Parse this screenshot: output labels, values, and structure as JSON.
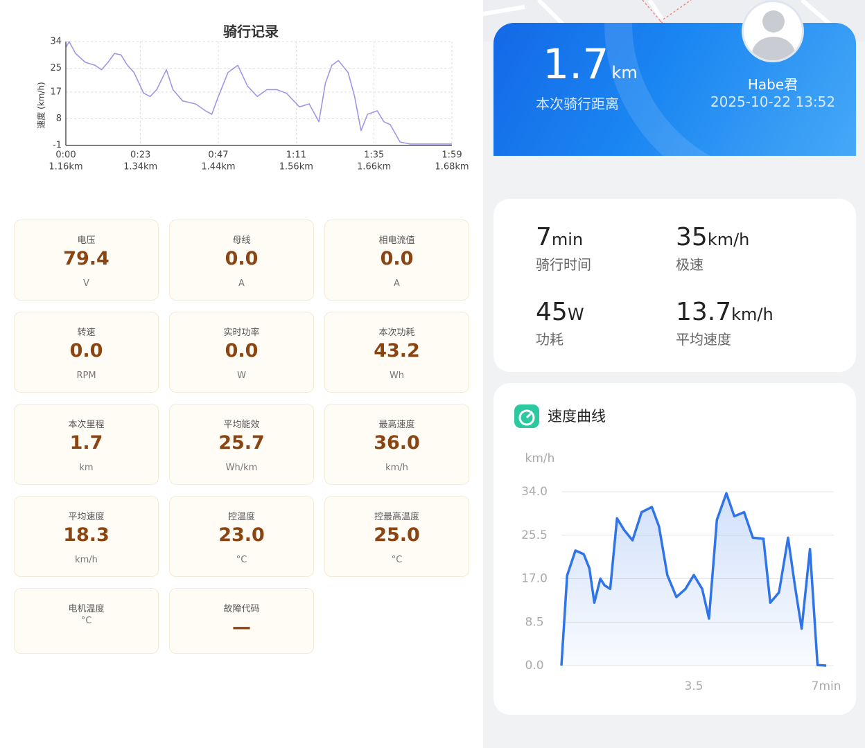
{
  "left_chart": {
    "type": "line",
    "title": "骑行记录",
    "ylabel": "速度 (km/h)",
    "xlim": [
      0,
      119
    ],
    "ylim": [
      -1,
      34
    ],
    "yticks": [
      -1,
      8,
      17,
      25,
      34
    ],
    "xticks": [
      {
        "value": 0,
        "label": "0:00"
      },
      {
        "value": 23,
        "label": "0:23"
      },
      {
        "value": 47,
        "label": "0:47"
      },
      {
        "value": 71,
        "label": "1:11"
      },
      {
        "value": 95,
        "label": "1:35"
      },
      {
        "value": 119,
        "label": "1:59"
      }
    ],
    "xtick_sublabels": [
      "1.16km",
      "1.34km",
      "1.44km",
      "1.56km",
      "1.66km",
      "1.68km"
    ],
    "grid": true,
    "series": [
      {
        "color": "#a494e6",
        "x": [
          0,
          1,
          3,
          6,
          9,
          11,
          13,
          15,
          17,
          19,
          21,
          24,
          26,
          28,
          31,
          33,
          36,
          40,
          43,
          45,
          47,
          50,
          53,
          56,
          59,
          62,
          65,
          68,
          72,
          75,
          78,
          80,
          82,
          84,
          87,
          89,
          91,
          93,
          96,
          98,
          100,
          103,
          106,
          119
        ],
        "values": [
          32,
          34,
          30,
          27,
          26,
          24.5,
          27,
          30,
          29.5,
          26,
          23.6,
          16.6,
          15.5,
          17.8,
          24.5,
          17.8,
          14,
          13,
          10.7,
          9.5,
          15.5,
          23.6,
          26,
          19,
          15.5,
          17.8,
          17.8,
          16.6,
          12,
          13,
          7,
          20,
          26,
          27.6,
          23.6,
          15.5,
          4,
          9.5,
          10.7,
          7,
          6,
          0.2,
          -0.5,
          -0.5
        ]
      }
    ]
  },
  "metrics": [
    {
      "label": "电压",
      "value": "79.4",
      "unit": "V"
    },
    {
      "label": "母线",
      "value": "0.0",
      "unit": "A"
    },
    {
      "label": "相电流值",
      "value": "0.0",
      "unit": "A"
    },
    {
      "label": "转速",
      "value": "0.0",
      "unit": "RPM"
    },
    {
      "label": "实时功率",
      "value": "0.0",
      "unit": "W"
    },
    {
      "label": "本次功耗",
      "value": "43.2",
      "unit": "Wh"
    },
    {
      "label": "本次里程",
      "value": "1.7",
      "unit": "km"
    },
    {
      "label": "平均能效",
      "value": "25.7",
      "unit": "Wh/km"
    },
    {
      "label": "最高速度",
      "value": "36.0",
      "unit": "km/h"
    },
    {
      "label": "平均速度",
      "value": "18.3",
      "unit": "km/h"
    },
    {
      "label": "控温度",
      "value": "23.0",
      "unit": "°C"
    },
    {
      "label": "控最高温度",
      "value": "25.0",
      "unit": "°C"
    },
    {
      "label": "电机温度",
      "unit": "°C"
    },
    {
      "label": "故障代码",
      "value": "—"
    }
  ],
  "summary": {
    "distance": "1.7",
    "distance_unit": "km",
    "distance_label": "本次骑行距离",
    "user": "Habe君",
    "datetime": "2025-10-22 13:52"
  },
  "stats": [
    {
      "value": "7",
      "unit": "min",
      "label": "骑行时间"
    },
    {
      "value": "35",
      "unit": "km/h",
      "label": "极速"
    },
    {
      "value": "45",
      "unit": "W",
      "label": "功耗"
    },
    {
      "value": "13.7",
      "unit": "km/h",
      "label": "平均速度"
    }
  ],
  "speed_chart": {
    "type": "area",
    "title": "速度曲线",
    "ylabel": "km/h",
    "xlim": [
      0,
      7.2
    ],
    "ylim": [
      0,
      34
    ],
    "yticks": [
      {
        "value": 0,
        "label": "0.0"
      },
      {
        "value": 8.5,
        "label": "8.5"
      },
      {
        "value": 17,
        "label": "17.0"
      },
      {
        "value": 25.5,
        "label": "25.5"
      },
      {
        "value": 34,
        "label": "34.0"
      }
    ],
    "xticks": [
      3.5,
      {
        "value": 7,
        "label": "7min"
      }
    ],
    "grid": true,
    "series": [
      {
        "color": "#2f74e8",
        "x": [
          0,
          0.15,
          0.37,
          0.59,
          0.74,
          0.87,
          1.03,
          1.14,
          1.29,
          1.47,
          1.66,
          1.88,
          2.12,
          2.39,
          2.58,
          2.8,
          3.04,
          3.28,
          3.5,
          3.72,
          3.9,
          4.11,
          4.36,
          4.57,
          4.83,
          5.06,
          5.34,
          5.52,
          5.75,
          5.99,
          6.17,
          6.35,
          6.57,
          6.77,
          7
        ],
        "values": [
          0,
          17.6,
          22.5,
          21.8,
          19,
          12.3,
          17,
          15.7,
          15,
          28.8,
          26.5,
          24.5,
          30,
          31,
          27.2,
          17.7,
          13.4,
          15,
          17.7,
          15,
          9.2,
          28.5,
          33.7,
          29.2,
          30,
          25,
          24.8,
          12.3,
          14.3,
          25,
          15.7,
          7.2,
          22.8,
          0.1,
          0
        ]
      }
    ]
  }
}
